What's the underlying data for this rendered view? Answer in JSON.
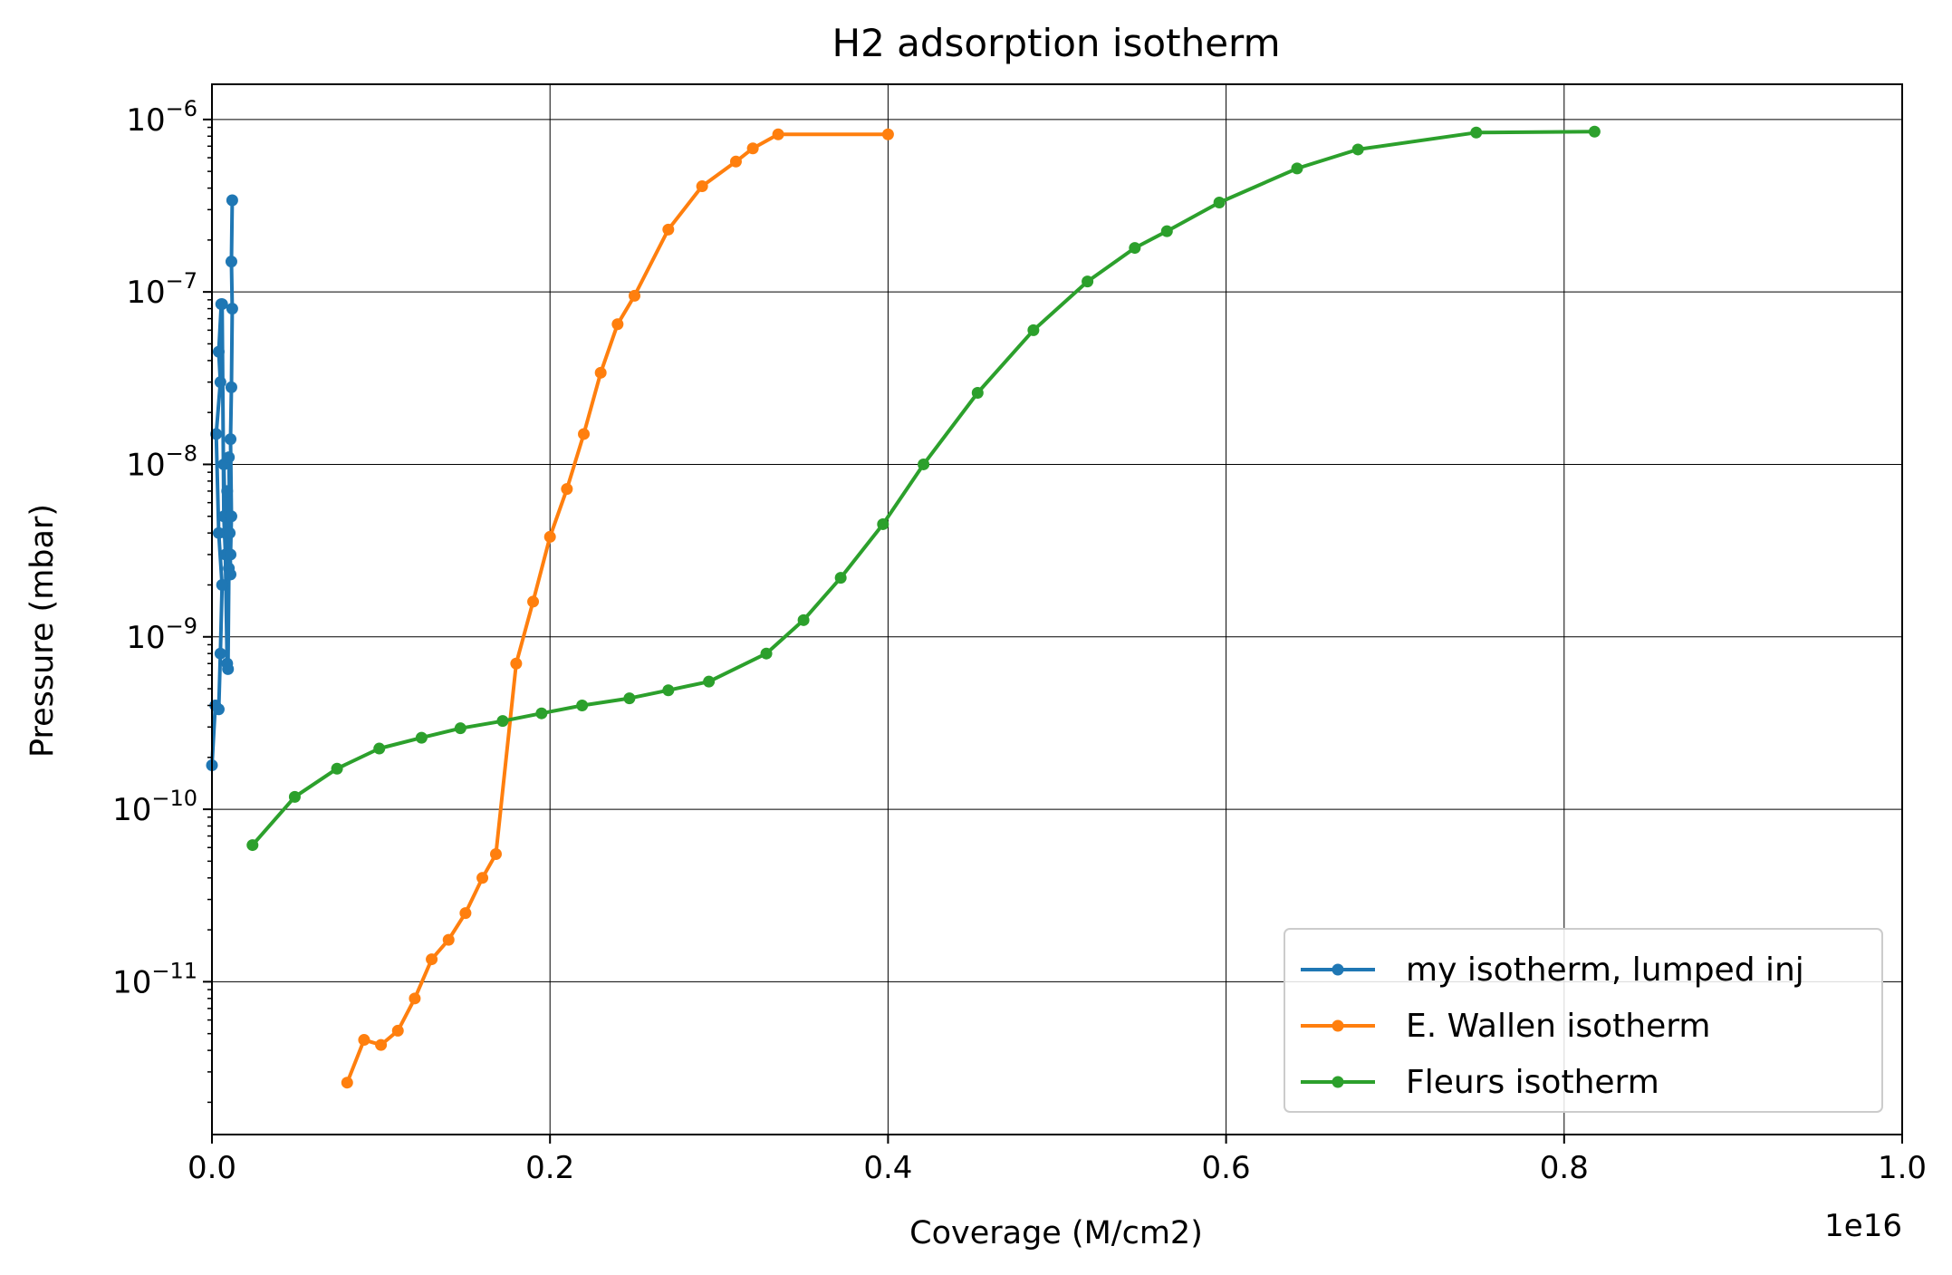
{
  "chart_data": {
    "type": "line",
    "title": "H2 adsorption isotherm",
    "xlabel": "Coverage (M/cm2)",
    "ylabel": "Pressure (mbar)",
    "x_offset_label": "1e16",
    "x_scale": "linear",
    "y_scale": "log",
    "xlim": [
      0,
      1e+16
    ],
    "ylim": [
      1.3e-12,
      1.6e-06
    ],
    "grid": true,
    "legend_position": "lower-right",
    "x_tick_labels": [
      "0.0",
      "0.2",
      "0.4",
      "0.6",
      "0.8",
      "1.0"
    ],
    "y_tick_labels": [
      {
        "base": "10",
        "exp": "−11",
        "value": 1e-11
      },
      {
        "base": "10",
        "exp": "−10",
        "value": 1e-10
      },
      {
        "base": "10",
        "exp": "−9",
        "value": 1e-09
      },
      {
        "base": "10",
        "exp": "−8",
        "value": 1e-08
      },
      {
        "base": "10",
        "exp": "−7",
        "value": 1e-07
      },
      {
        "base": "10",
        "exp": "−6",
        "value": 1e-06
      }
    ],
    "series": [
      {
        "name": "my isotherm, lumped inj",
        "color": "#1f77b4",
        "x": [
          0,
          20000000000000.0,
          40000000000000.0,
          50000000000000.0,
          60000000000000.0,
          40000000000000.0,
          25000000000000.0,
          50000000000000.0,
          40000000000000.0,
          55000000000000.0,
          60000000000000.0,
          70000000000000.0,
          80000000000000.0,
          90000000000000.0,
          70000000000000.0,
          80000000000000.0,
          95000000000000.0,
          100000000000000.0,
          90000000000000.0,
          105000000000000.0,
          110000000000000.0,
          100000000000000.0,
          110000000000000.0,
          115000000000000.0,
          110000000000000.0,
          115000000000000.0,
          120000000000000.0,
          115000000000000.0,
          120000000000000.0
        ],
        "y": [
          1.8e-10,
          4e-10,
          3.8e-10,
          8e-10,
          2e-09,
          4e-09,
          1.5e-08,
          3e-08,
          4.5e-08,
          8.5e-08,
          8.5e-08,
          5e-09,
          3e-09,
          7e-10,
          1e-08,
          4e-09,
          6.5e-10,
          2.5e-09,
          7e-09,
          4e-09,
          2.3e-09,
          1.1e-08,
          3e-09,
          5e-09,
          1.4e-08,
          2.8e-08,
          8e-08,
          1.5e-07,
          3.4e-07
        ]
      },
      {
        "name": "E. Wallen isotherm",
        "color": "#ff7f0e",
        "x": [
          800000000000000.0,
          900000000000000.0,
          1000000000000000.0,
          1100000000000000.0,
          1200000000000000.0,
          1300000000000000.0,
          1400000000000000.0,
          1500000000000000.0,
          1600000000000000.0,
          1680000000000000.0,
          1800000000000000.0,
          1900000000000000.0,
          2000000000000000.0,
          2100000000000000.0,
          2200000000000000.0,
          2300000000000000.0,
          2400000000000000.0,
          2500000000000000.0,
          2700000000000000.0,
          2900000000000000.0,
          3100000000000000.0,
          3200000000000000.0,
          3350000000000000.0,
          4000000000000000.0
        ],
        "y": [
          2.6e-12,
          4.6e-12,
          4.3e-12,
          5.2e-12,
          8e-12,
          1.35e-11,
          1.75e-11,
          2.5e-11,
          4e-11,
          5.5e-11,
          7e-10,
          1.6e-09,
          3.8e-09,
          7.2e-09,
          1.5e-08,
          3.4e-08,
          6.5e-08,
          9.5e-08,
          2.3e-07,
          4.1e-07,
          5.7e-07,
          6.8e-07,
          8.2e-07,
          8.2e-07
        ]
      },
      {
        "name": "Fleurs isotherm",
        "color": "#2ca02c",
        "x": [
          240000000000000.0,
          490000000000000.0,
          740000000000000.0,
          990000000000000.0,
          1240000000000000.0,
          1470000000000000.0,
          1720000000000000.0,
          1950000000000000.0,
          2190000000000000.0,
          2470000000000000.0,
          2700000000000000.0,
          2940000000000000.0,
          3280000000000000.0,
          3500000000000000.0,
          3720000000000000.0,
          3970000000000000.0,
          4210000000000000.0,
          4530000000000000.0,
          4860000000000000.0,
          5180000000000000.0,
          5460000000000000.0,
          5650000000000000.0,
          5960000000000000.0,
          6420000000000000.0,
          6780000000000000.0,
          7480000000000000.0,
          8180000000000000.0
        ],
        "y": [
          6.2e-11,
          1.18e-10,
          1.72e-10,
          2.25e-10,
          2.6e-10,
          2.95e-10,
          3.25e-10,
          3.6e-10,
          4e-10,
          4.4e-10,
          4.9e-10,
          5.5e-10,
          8e-10,
          1.25e-09,
          2.2e-09,
          4.5e-09,
          1e-08,
          2.6e-08,
          6e-08,
          1.15e-07,
          1.8e-07,
          2.25e-07,
          3.3e-07,
          5.2e-07,
          6.7e-07,
          8.4e-07,
          8.5e-07
        ]
      }
    ]
  }
}
